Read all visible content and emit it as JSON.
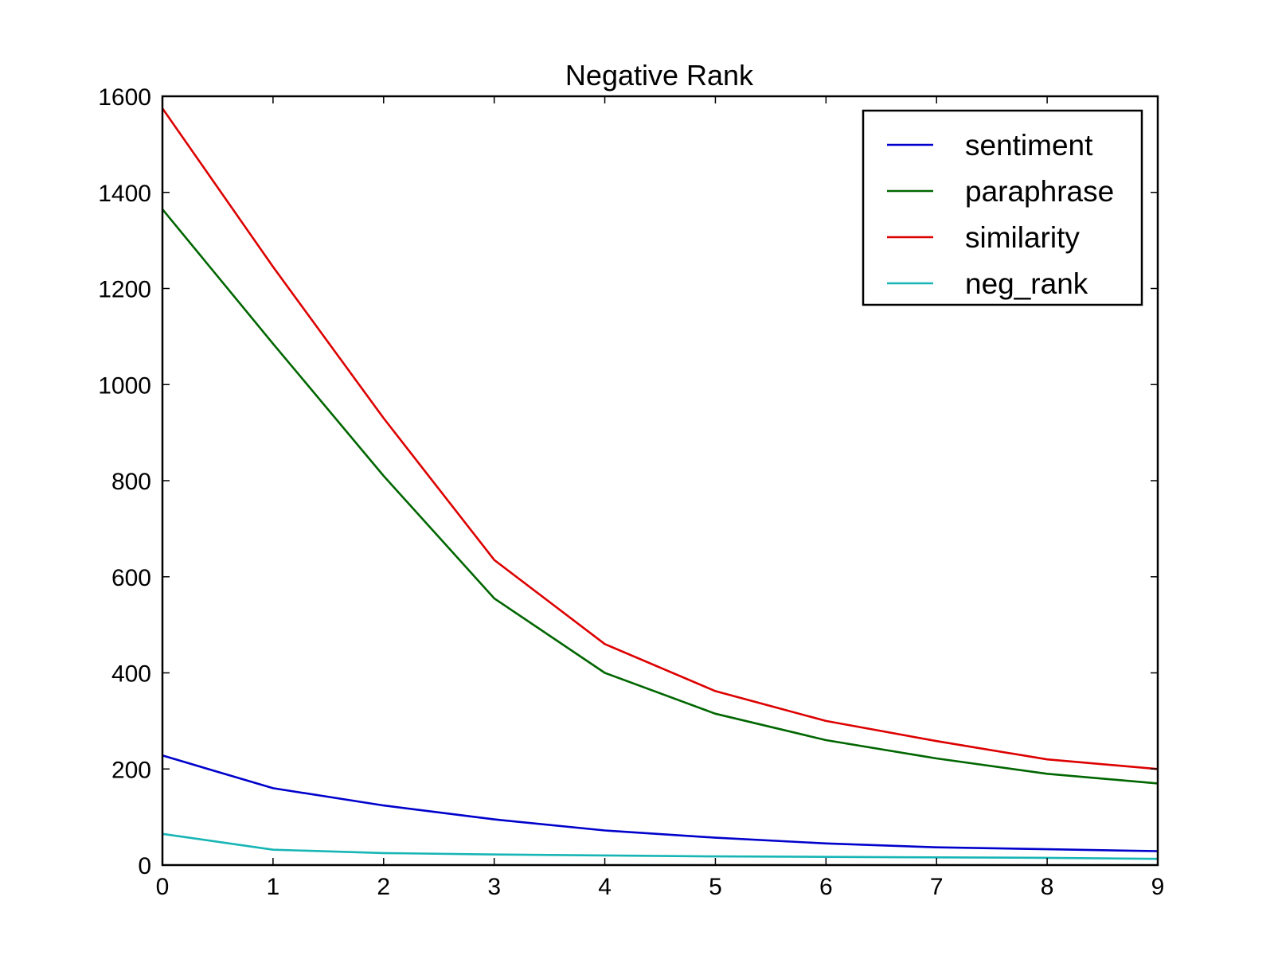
{
  "chart_data": {
    "type": "line",
    "title": "Negative Rank",
    "xlabel": "",
    "ylabel": "",
    "x": [
      0,
      1,
      2,
      3,
      4,
      5,
      6,
      7,
      8,
      9
    ],
    "xlim": [
      0,
      9
    ],
    "ylim": [
      0,
      1600
    ],
    "xticks": [
      "0",
      "1",
      "2",
      "3",
      "4",
      "5",
      "6",
      "7",
      "8",
      "9"
    ],
    "yticks": [
      "0",
      "200",
      "400",
      "600",
      "800",
      "1000",
      "1200",
      "1400",
      "1600"
    ],
    "grid": false,
    "legend_position": "top-right",
    "series": [
      {
        "name": "sentiment",
        "color": "#0000cc",
        "values": [
          228,
          160,
          124,
          95,
          72,
          57,
          45,
          37,
          33,
          29
        ]
      },
      {
        "name": "paraphrase",
        "color": "#006600",
        "values": [
          1365,
          1085,
          810,
          555,
          400,
          315,
          260,
          222,
          190,
          170
        ]
      },
      {
        "name": "similarity",
        "color": "#dd0000",
        "values": [
          1575,
          1245,
          930,
          635,
          460,
          362,
          300,
          258,
          220,
          200
        ]
      },
      {
        "name": "neg_rank",
        "color": "#17b5b5",
        "values": [
          65,
          32,
          25,
          22,
          20,
          18,
          17,
          16,
          15,
          13
        ]
      }
    ]
  }
}
